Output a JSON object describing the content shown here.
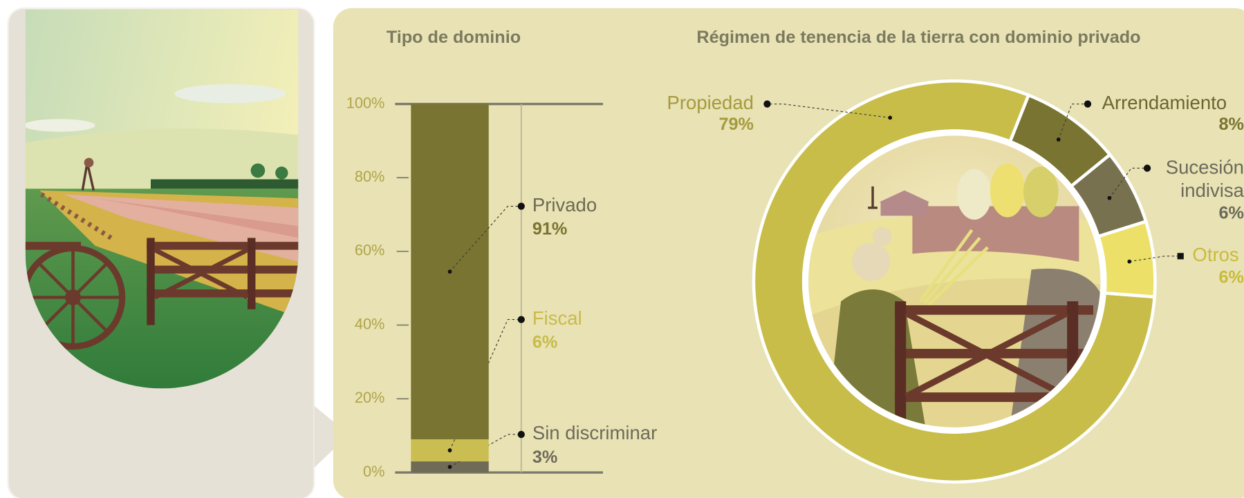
{
  "chart_data": [
    {
      "type": "bar",
      "title": "Tipo de dominio",
      "ylim": [
        0,
        100
      ],
      "yticks": [
        {
          "value": 0,
          "label": "0%"
        },
        {
          "value": 20,
          "label": "20%"
        },
        {
          "value": 40,
          "label": "40%"
        },
        {
          "value": 60,
          "label": "60%"
        },
        {
          "value": 80,
          "label": "80%"
        },
        {
          "value": 100,
          "label": "100%"
        }
      ],
      "series": [
        {
          "name": "Privado",
          "color": "#7a7433",
          "values": [
            91
          ],
          "value_labels": [
            "91%"
          ]
        },
        {
          "name": "Fiscal",
          "color": "#cabe52",
          "values": [
            6
          ],
          "value_labels": [
            "6%"
          ]
        },
        {
          "name": "Sin discriminar",
          "color": "#6f6b57",
          "values": [
            3
          ],
          "value_labels": [
            "3%"
          ]
        }
      ]
    },
    {
      "type": "pie",
      "title": "Régimen de tenencia de la tierra con dominio privado",
      "categories": [
        "Propiedad",
        "Arrendamiento",
        "Sucesión indivisa",
        "Otros"
      ],
      "values": [
        79,
        8,
        6,
        6
      ],
      "value_labels": [
        "79%",
        "8%",
        "6%",
        "6%"
      ],
      "colors": [
        "#c8bd48",
        "#7a7433",
        "#78714f",
        "#ede068"
      ]
    }
  ]
}
